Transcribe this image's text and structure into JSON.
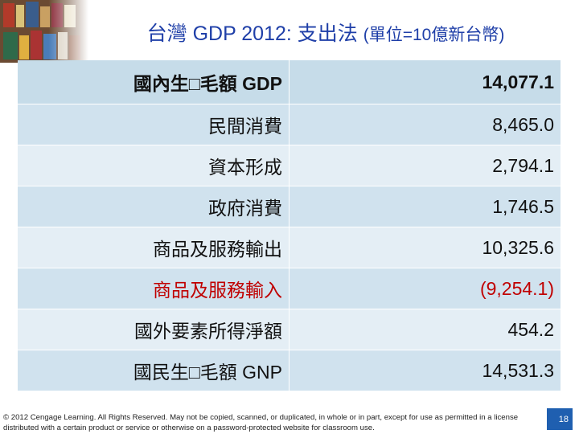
{
  "header": {
    "title_main": "台灣 GDP 2012: 支出法",
    "title_unit": "(單位=10億新台幣)"
  },
  "table": {
    "rows": [
      [
        "國內生□毛額  GDP",
        "14,077.1"
      ],
      [
        "民間消費",
        "8,465.0"
      ],
      [
        "資本形成",
        "2,794.1"
      ],
      [
        "政府消費",
        "1,746.5"
      ],
      [
        "商品及服務輸出",
        "10,325.6"
      ],
      [
        "商品及服務輸入",
        "(9,254.1)"
      ],
      [
        "國外要素所得淨額",
        "454.2"
      ],
      [
        "國民生□毛額 GNP",
        "14,531.3"
      ]
    ]
  },
  "footer": {
    "copyright": "© 2012 Cengage Learning. All Rights Reserved. May not be copied, scanned, or duplicated, in whole or in part, except for use as permitted in a license distributed with a certain product or service or otherwise on a password-protected website for classroom use.",
    "page_number": "18"
  }
}
